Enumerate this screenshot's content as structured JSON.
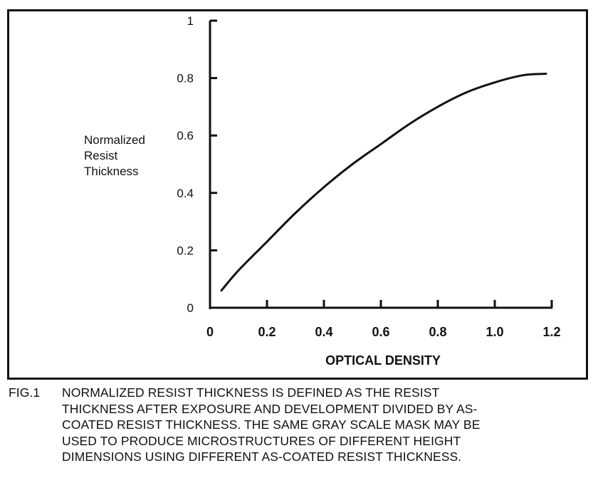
{
  "chart_data": {
    "type": "line",
    "title": "",
    "xlabel": "OPTICAL DENSITY",
    "ylabel_lines": [
      "Normalized",
      "Resist",
      "Thickness"
    ],
    "xlim": [
      0,
      1.2
    ],
    "ylim": [
      0,
      1
    ],
    "x_ticks": [
      "0",
      "0.2",
      "0.4",
      "0.6",
      "0.8",
      "1.0",
      "1.2"
    ],
    "y_ticks": [
      "0",
      "0.2",
      "0.4",
      "0.6",
      "0.8",
      "1"
    ],
    "grid": false,
    "series": [
      {
        "x": [
          0.04,
          0.1,
          0.2,
          0.3,
          0.4,
          0.5,
          0.6,
          0.7,
          0.8,
          0.9,
          1.0,
          1.1,
          1.18
        ],
        "y": [
          0.06,
          0.13,
          0.23,
          0.33,
          0.42,
          0.5,
          0.57,
          0.64,
          0.7,
          0.75,
          0.785,
          0.81,
          0.815
        ]
      }
    ]
  },
  "caption": {
    "label": "FIG.1",
    "lines": [
      "NORMALIZED RESIST THICKNESS IS DEFINED AS THE RESIST",
      "THICKNESS AFTER EXPOSURE AND DEVELOPMENT DIVIDED BY AS-",
      "COATED RESIST THICKNESS. THE SAME GRAY SCALE MASK MAY BE",
      "USED TO PRODUCE MICROSTRUCTURES OF DIFFERENT HEIGHT",
      "DIMENSIONS USING DIFFERENT AS-COATED RESIST THICKNESS."
    ]
  }
}
